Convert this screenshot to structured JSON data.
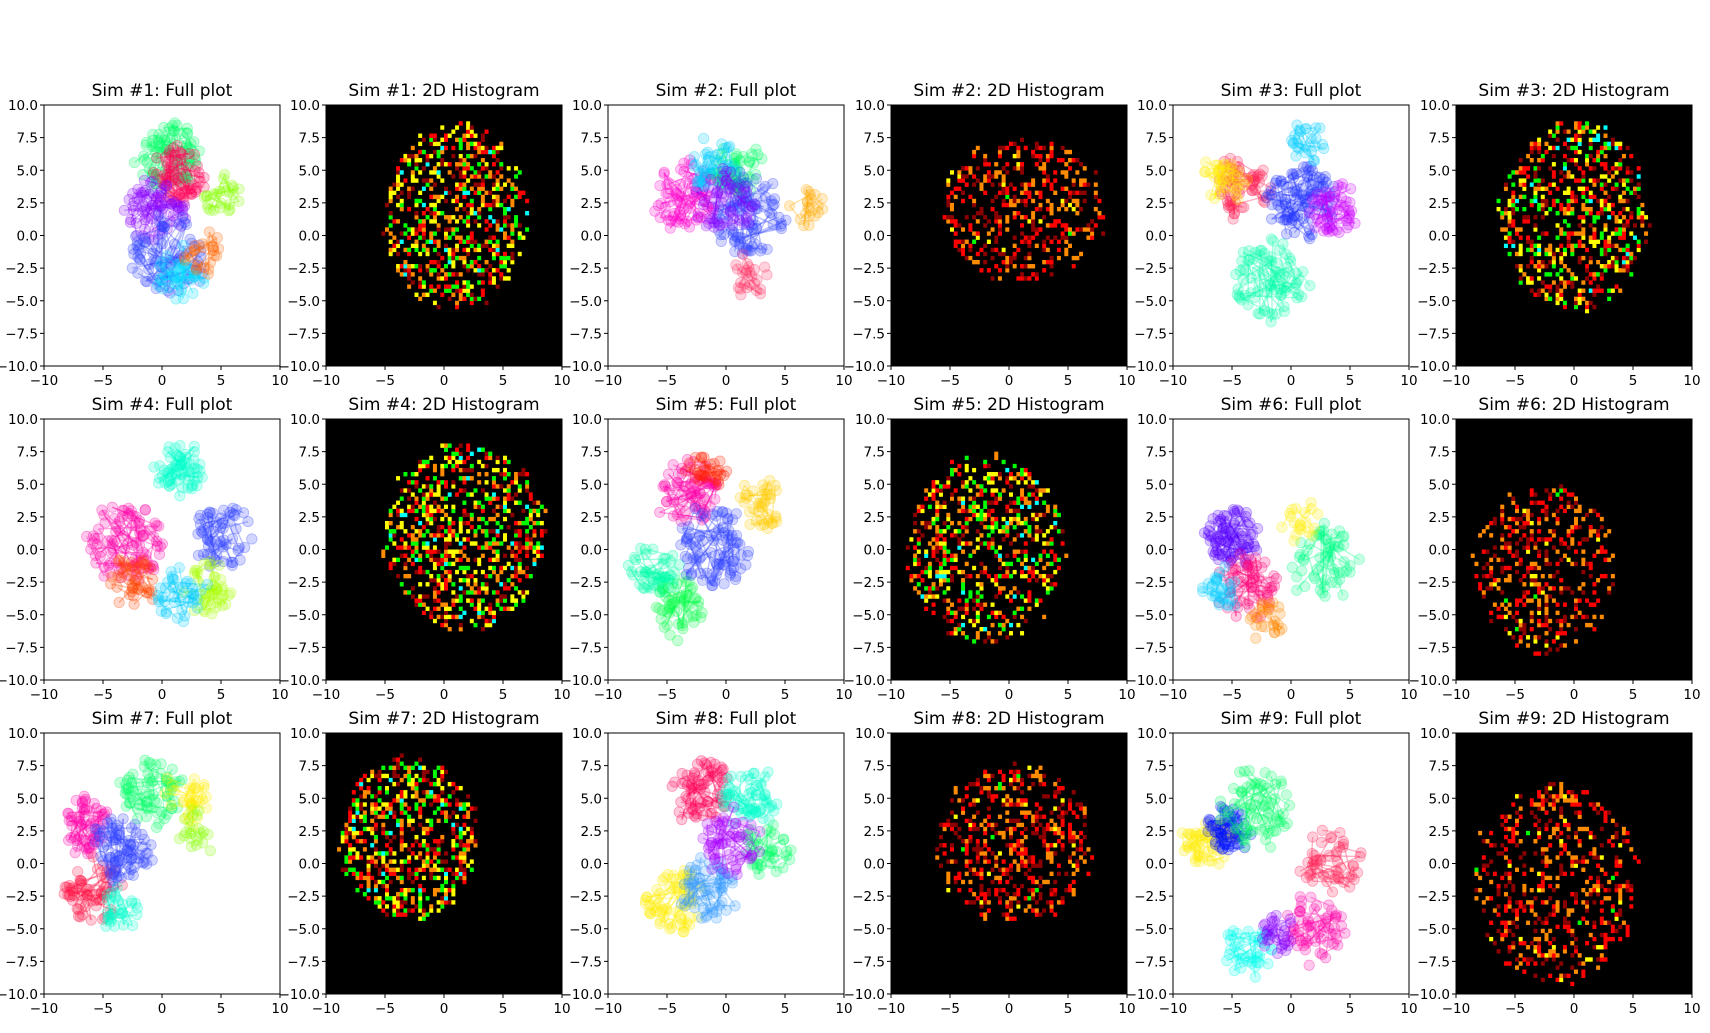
{
  "figure": {
    "background": "#ffffff",
    "histogram_background": "#000000",
    "histogram_colormap": [
      "#000000",
      "#8b0000",
      "#ff0000",
      "#ff8c00",
      "#ffff00",
      "#00ff00",
      "#00ffff"
    ]
  },
  "chart_data": [
    {
      "type": "scatter",
      "title": "Sim #1: Full plot",
      "xlim": [
        -10,
        10
      ],
      "ylim": [
        -10,
        10
      ],
      "xticks": [
        "−10",
        "−5",
        "0",
        "5",
        "10"
      ],
      "yticks": [
        "−10.0",
        "−7.5",
        "−5.0",
        "−2.5",
        "0.0",
        "2.5",
        "5.0",
        "7.5",
        "10.0"
      ],
      "grid": false,
      "seed": 11,
      "clusters": [
        {
          "color": "#00ff66",
          "cx": 0.5,
          "cy": 6.0,
          "r": 2.5,
          "n": 80
        },
        {
          "color": "#ff0055",
          "cx": 1.5,
          "cy": 4.5,
          "r": 2.2,
          "n": 70
        },
        {
          "color": "#8800ff",
          "cx": -0.5,
          "cy": 2.0,
          "r": 2.4,
          "n": 70
        },
        {
          "color": "#3344ff",
          "cx": 0.5,
          "cy": -1.5,
          "r": 3.0,
          "n": 80
        },
        {
          "color": "#00ddff",
          "cx": 1.5,
          "cy": -3.0,
          "r": 2.0,
          "n": 40
        },
        {
          "color": "#ff6600",
          "cx": 3.5,
          "cy": -1.5,
          "r": 1.5,
          "n": 25
        },
        {
          "color": "#88ff00",
          "cx": 5.0,
          "cy": 3.0,
          "r": 1.5,
          "n": 25
        }
      ]
    },
    {
      "type": "heatmap",
      "title": "Sim #1: 2D Histogram",
      "xlim": [
        -10,
        10
      ],
      "ylim": [
        -10,
        10
      ],
      "xticks": [
        "−10",
        "−5",
        "0",
        "5",
        "10"
      ],
      "yticks": [
        "−10.0",
        "−7.5",
        "−5.0",
        "−2.5",
        "0.0",
        "2.5",
        "5.0",
        "7.5",
        "10.0"
      ],
      "bins": 64,
      "seed": 12,
      "cx": 1.0,
      "cy": 1.5,
      "rx": 6.0,
      "ry": 7.0,
      "density": 0.42
    },
    {
      "type": "scatter",
      "title": "Sim #2: Full plot",
      "xlim": [
        -10,
        10
      ],
      "ylim": [
        -10,
        10
      ],
      "xticks": [
        "−10",
        "−5",
        "0",
        "5",
        "10"
      ],
      "yticks": [
        "−10.0",
        "−7.5",
        "−5.0",
        "−2.5",
        "0.0",
        "2.5",
        "5.0",
        "7.5",
        "10.0"
      ],
      "grid": false,
      "seed": 21,
      "clusters": [
        {
          "color": "#ff00cc",
          "cx": -3.5,
          "cy": 3.0,
          "r": 2.5,
          "n": 70
        },
        {
          "color": "#00ff66",
          "cx": 1.0,
          "cy": 5.0,
          "r": 2.0,
          "n": 60
        },
        {
          "color": "#3344ff",
          "cx": 2.0,
          "cy": 1.5,
          "r": 3.0,
          "n": 90
        },
        {
          "color": "#00ccff",
          "cx": -1.0,
          "cy": 5.5,
          "r": 2.0,
          "n": 40
        },
        {
          "color": "#ffaa00",
          "cx": 7.0,
          "cy": 2.0,
          "r": 1.2,
          "n": 20
        },
        {
          "color": "#ff3366",
          "cx": 2.0,
          "cy": -3.0,
          "r": 1.6,
          "n": 25
        },
        {
          "color": "#8800ff",
          "cx": 0.0,
          "cy": 2.5,
          "r": 2.5,
          "n": 50
        }
      ]
    },
    {
      "type": "heatmap",
      "title": "Sim #2: 2D Histogram",
      "xlim": [
        -10,
        10
      ],
      "ylim": [
        -10,
        10
      ],
      "xticks": [
        "−10",
        "−5",
        "0",
        "5",
        "10"
      ],
      "yticks": [
        "−10.0",
        "−7.5",
        "−5.0",
        "−2.5",
        "0.0",
        "2.5",
        "5.0",
        "7.5",
        "10.0"
      ],
      "bins": 64,
      "seed": 22,
      "cx": 1.2,
      "cy": 2.0,
      "rx": 6.8,
      "ry": 5.5,
      "density": 0.32,
      "hot_only": true
    },
    {
      "type": "scatter",
      "title": "Sim #3: Full plot",
      "xlim": [
        -10,
        10
      ],
      "ylim": [
        -10,
        10
      ],
      "xticks": [
        "−10",
        "−5",
        "0",
        "5",
        "10"
      ],
      "yticks": [
        "−10.0",
        "−7.5",
        "−5.0",
        "−2.5",
        "0.0",
        "2.5",
        "5.0",
        "7.5",
        "10.0"
      ],
      "grid": false,
      "seed": 31,
      "clusters": [
        {
          "color": "#ff2255",
          "cx": -4.0,
          "cy": 3.5,
          "r": 2.2,
          "n": 60
        },
        {
          "color": "#ffee00",
          "cx": -5.5,
          "cy": 4.0,
          "r": 1.8,
          "n": 35
        },
        {
          "color": "#00ffaa",
          "cx": -2.0,
          "cy": -3.5,
          "r": 3.0,
          "n": 80
        },
        {
          "color": "#2233ff",
          "cx": 1.0,
          "cy": 2.5,
          "r": 2.8,
          "n": 90
        },
        {
          "color": "#cc00ff",
          "cx": 3.5,
          "cy": 2.0,
          "r": 2.0,
          "n": 50
        },
        {
          "color": "#00ccff",
          "cx": 1.5,
          "cy": 7.0,
          "r": 1.5,
          "n": 25
        }
      ]
    },
    {
      "type": "heatmap",
      "title": "Sim #3: 2D Histogram",
      "xlim": [
        -10,
        10
      ],
      "ylim": [
        -10,
        10
      ],
      "xticks": [
        "−10",
        "−5",
        "0",
        "5",
        "10"
      ],
      "yticks": [
        "−10.0",
        "−7.5",
        "−5.0",
        "−2.5",
        "0.0",
        "2.5",
        "5.0",
        "7.5",
        "10.0"
      ],
      "bins": 64,
      "seed": 32,
      "cx": 0.0,
      "cy": 1.5,
      "rx": 6.2,
      "ry": 7.2,
      "density": 0.38
    },
    {
      "type": "scatter",
      "title": "Sim #4: Full plot",
      "xlim": [
        -10,
        10
      ],
      "ylim": [
        -10,
        10
      ],
      "xticks": [
        "−10",
        "−5",
        "0",
        "5",
        "10"
      ],
      "yticks": [
        "−10.0",
        "−7.5",
        "−5.0",
        "−2.5",
        "0.0",
        "2.5",
        "5.0",
        "7.5",
        "10.0"
      ],
      "grid": false,
      "seed": 41,
      "clusters": [
        {
          "color": "#00ffcc",
          "cx": 1.5,
          "cy": 6.0,
          "r": 2.0,
          "n": 60
        },
        {
          "color": "#ff00aa",
          "cx": -3.0,
          "cy": 0.5,
          "r": 3.0,
          "n": 90
        },
        {
          "color": "#ff4400",
          "cx": -2.5,
          "cy": -2.5,
          "r": 2.0,
          "n": 40
        },
        {
          "color": "#3344ff",
          "cx": 5.0,
          "cy": 1.0,
          "r": 2.5,
          "n": 60
        },
        {
          "color": "#aaff00",
          "cx": 4.0,
          "cy": -3.0,
          "r": 2.0,
          "n": 40
        },
        {
          "color": "#00ccff",
          "cx": 1.5,
          "cy": -3.5,
          "r": 2.0,
          "n": 40
        }
      ]
    },
    {
      "type": "heatmap",
      "title": "Sim #4: 2D Histogram",
      "xlim": [
        -10,
        10
      ],
      "ylim": [
        -10,
        10
      ],
      "xticks": [
        "−10",
        "−5",
        "0",
        "5",
        "10"
      ],
      "yticks": [
        "−10.0",
        "−7.5",
        "−5.0",
        "−2.5",
        "0.0",
        "2.5",
        "5.0",
        "7.5",
        "10.0"
      ],
      "bins": 64,
      "seed": 42,
      "cx": 1.8,
      "cy": 1.0,
      "rx": 6.8,
      "ry": 7.0,
      "density": 0.42
    },
    {
      "type": "scatter",
      "title": "Sim #5: Full plot",
      "xlim": [
        -10,
        10
      ],
      "ylim": [
        -10,
        10
      ],
      "xticks": [
        "−10",
        "−5",
        "0",
        "5",
        "10"
      ],
      "yticks": [
        "−10.0",
        "−7.5",
        "−5.0",
        "−2.5",
        "0.0",
        "2.5",
        "5.0",
        "7.5",
        "10.0"
      ],
      "grid": false,
      "seed": 51,
      "clusters": [
        {
          "color": "#ff00aa",
          "cx": -3.0,
          "cy": 4.5,
          "r": 2.5,
          "n": 70
        },
        {
          "color": "#00ffaa",
          "cx": -6.0,
          "cy": -1.5,
          "r": 2.0,
          "n": 50
        },
        {
          "color": "#00ff44",
          "cx": -4.0,
          "cy": -4.5,
          "r": 2.2,
          "n": 50
        },
        {
          "color": "#3344ff",
          "cx": -1.0,
          "cy": 0.0,
          "r": 3.0,
          "n": 90
        },
        {
          "color": "#ffcc00",
          "cx": 3.0,
          "cy": 3.5,
          "r": 2.0,
          "n": 40
        },
        {
          "color": "#ff2200",
          "cx": -1.5,
          "cy": 6.0,
          "r": 1.5,
          "n": 30
        }
      ]
    },
    {
      "type": "heatmap",
      "title": "Sim #5: 2D Histogram",
      "xlim": [
        -10,
        10
      ],
      "ylim": [
        -10,
        10
      ],
      "xticks": [
        "−10",
        "−5",
        "0",
        "5",
        "10"
      ],
      "yticks": [
        "−10.0",
        "−7.5",
        "−5.0",
        "−2.5",
        "0.0",
        "2.5",
        "5.0",
        "7.5",
        "10.0"
      ],
      "bins": 64,
      "seed": 52,
      "cx": -2.0,
      "cy": 0.0,
      "rx": 6.5,
      "ry": 7.2,
      "density": 0.36
    },
    {
      "type": "scatter",
      "title": "Sim #6: Full plot",
      "xlim": [
        -10,
        10
      ],
      "ylim": [
        -10,
        10
      ],
      "xticks": [
        "−10",
        "−5",
        "0",
        "5",
        "10"
      ],
      "yticks": [
        "−10.0",
        "−7.5",
        "−5.0",
        "−2.5",
        "0.0",
        "2.5",
        "5.0",
        "7.5",
        "10.0"
      ],
      "grid": false,
      "seed": 61,
      "clusters": [
        {
          "color": "#5500ff",
          "cx": -5.0,
          "cy": 1.0,
          "r": 2.2,
          "n": 80
        },
        {
          "color": "#ff0077",
          "cx": -3.5,
          "cy": -3.0,
          "r": 2.5,
          "n": 60
        },
        {
          "color": "#00ff88",
          "cx": 2.5,
          "cy": -1.0,
          "r": 2.8,
          "n": 60
        },
        {
          "color": "#ff8800",
          "cx": -2.0,
          "cy": -5.5,
          "r": 1.5,
          "n": 25
        },
        {
          "color": "#ffee00",
          "cx": 1.0,
          "cy": 2.0,
          "r": 1.5,
          "n": 20
        },
        {
          "color": "#00ccff",
          "cx": -6.0,
          "cy": -3.0,
          "r": 1.5,
          "n": 30
        }
      ]
    },
    {
      "type": "heatmap",
      "title": "Sim #6: 2D Histogram",
      "xlim": [
        -10,
        10
      ],
      "ylim": [
        -10,
        10
      ],
      "xticks": [
        "−10",
        "−5",
        "0",
        "5",
        "10"
      ],
      "yticks": [
        "−10.0",
        "−7.5",
        "−5.0",
        "−2.5",
        "0.0",
        "2.5",
        "5.0",
        "7.5",
        "10.0"
      ],
      "bins": 64,
      "seed": 62,
      "cx": -2.5,
      "cy": -1.5,
      "rx": 6.0,
      "ry": 6.3,
      "density": 0.3,
      "hot_only": true
    },
    {
      "type": "scatter",
      "title": "Sim #7: Full plot",
      "xlim": [
        -10,
        10
      ],
      "ylim": [
        -10,
        10
      ],
      "xticks": [
        "−10",
        "−5",
        "0",
        "5",
        "10"
      ],
      "yticks": [
        "−10.0",
        "−7.5",
        "−5.0",
        "−2.5",
        "0.0",
        "2.5",
        "5.0",
        "7.5",
        "10.0"
      ],
      "grid": false,
      "seed": 71,
      "clusters": [
        {
          "color": "#ff00aa",
          "cx": -6.5,
          "cy": 3.0,
          "r": 2.0,
          "n": 60
        },
        {
          "color": "#ff1144",
          "cx": -6.0,
          "cy": -2.0,
          "r": 2.2,
          "n": 60
        },
        {
          "color": "#00ff66",
          "cx": -1.0,
          "cy": 5.5,
          "r": 2.5,
          "n": 70
        },
        {
          "color": "#3344ff",
          "cx": -3.5,
          "cy": 1.0,
          "r": 2.5,
          "n": 80
        },
        {
          "color": "#ffee00",
          "cx": 2.0,
          "cy": 5.0,
          "r": 2.0,
          "n": 30
        },
        {
          "color": "#00ffcc",
          "cx": -3.5,
          "cy": -3.5,
          "r": 1.5,
          "n": 30
        },
        {
          "color": "#88ff00",
          "cx": 3.0,
          "cy": 2.5,
          "r": 1.5,
          "n": 20
        }
      ]
    },
    {
      "type": "heatmap",
      "title": "Sim #7: 2D Histogram",
      "xlim": [
        -10,
        10
      ],
      "ylim": [
        -10,
        10
      ],
      "xticks": [
        "−10",
        "−5",
        "0",
        "5",
        "10"
      ],
      "yticks": [
        "−10.0",
        "−7.5",
        "−5.0",
        "−2.5",
        "0.0",
        "2.5",
        "5.0",
        "7.5",
        "10.0"
      ],
      "bins": 64,
      "seed": 72,
      "cx": -3.0,
      "cy": 2.0,
      "rx": 5.8,
      "ry": 6.2,
      "density": 0.45
    },
    {
      "type": "scatter",
      "title": "Sim #8: Full plot",
      "xlim": [
        -10,
        10
      ],
      "ylim": [
        -10,
        10
      ],
      "xticks": [
        "−10",
        "−5",
        "0",
        "5",
        "10"
      ],
      "yticks": [
        "−10.0",
        "−7.5",
        "−5.0",
        "−2.5",
        "0.0",
        "2.5",
        "5.0",
        "7.5",
        "10.0"
      ],
      "grid": false,
      "seed": 81,
      "clusters": [
        {
          "color": "#ff0055",
          "cx": -2.0,
          "cy": 5.5,
          "r": 2.5,
          "n": 70
        },
        {
          "color": "#00ffcc",
          "cx": 2.0,
          "cy": 5.0,
          "r": 2.2,
          "n": 60
        },
        {
          "color": "#00ff66",
          "cx": 3.5,
          "cy": 1.0,
          "r": 2.0,
          "n": 40
        },
        {
          "color": "#ffee00",
          "cx": -4.5,
          "cy": -3.0,
          "r": 2.5,
          "n": 60
        },
        {
          "color": "#3399ff",
          "cx": -1.5,
          "cy": -2.0,
          "r": 2.5,
          "n": 60
        },
        {
          "color": "#aa00ff",
          "cx": 0.5,
          "cy": 1.5,
          "r": 2.5,
          "n": 60
        }
      ]
    },
    {
      "type": "heatmap",
      "title": "Sim #8: 2D Histogram",
      "xlim": [
        -10,
        10
      ],
      "ylim": [
        -10,
        10
      ],
      "xticks": [
        "−10",
        "−5",
        "0",
        "5",
        "10"
      ],
      "yticks": [
        "−10.0",
        "−7.5",
        "−5.0",
        "−2.5",
        "0.0",
        "2.5",
        "5.0",
        "7.5",
        "10.0"
      ],
      "bins": 64,
      "seed": 82,
      "cx": 0.5,
      "cy": 1.5,
      "rx": 6.5,
      "ry": 6.0,
      "density": 0.35,
      "hot_only": true
    },
    {
      "type": "scatter",
      "title": "Sim #9: Full plot",
      "xlim": [
        -10,
        10
      ],
      "ylim": [
        -10,
        10
      ],
      "xticks": [
        "−10",
        "−5",
        "0",
        "5",
        "10"
      ],
      "yticks": [
        "−10.0",
        "−7.5",
        "−5.0",
        "−2.5",
        "0.0",
        "2.5",
        "5.0",
        "7.5",
        "10.0"
      ],
      "grid": false,
      "seed": 91,
      "clusters": [
        {
          "color": "#ffee00",
          "cx": -7.0,
          "cy": 1.5,
          "r": 2.0,
          "n": 50
        },
        {
          "color": "#0011ff",
          "cx": -5.5,
          "cy": 2.5,
          "r": 1.8,
          "n": 60
        },
        {
          "color": "#00ff66",
          "cx": -3.0,
          "cy": 4.5,
          "r": 3.0,
          "n": 70
        },
        {
          "color": "#ff00aa",
          "cx": 2.0,
          "cy": -5.0,
          "r": 2.5,
          "n": 60
        },
        {
          "color": "#00ffee",
          "cx": -3.5,
          "cy": -6.5,
          "r": 2.0,
          "n": 40
        },
        {
          "color": "#ff2255",
          "cx": 3.5,
          "cy": 0.0,
          "r": 2.5,
          "n": 50
        },
        {
          "color": "#8800ff",
          "cx": -1.0,
          "cy": -5.5,
          "r": 1.5,
          "n": 30
        }
      ]
    },
    {
      "type": "heatmap",
      "title": "Sim #9: 2D Histogram",
      "xlim": [
        -10,
        10
      ],
      "ylim": [
        -10,
        10
      ],
      "xticks": [
        "−10",
        "−5",
        "0",
        "5",
        "10"
      ],
      "yticks": [
        "−10.0",
        "−7.5",
        "−5.0",
        "−2.5",
        "0.0",
        "2.5",
        "5.0",
        "7.5",
        "10.0"
      ],
      "bins": 64,
      "seed": 92,
      "cx": -1.5,
      "cy": -1.5,
      "rx": 7.0,
      "ry": 7.5,
      "density": 0.3,
      "hot_only": true
    }
  ]
}
